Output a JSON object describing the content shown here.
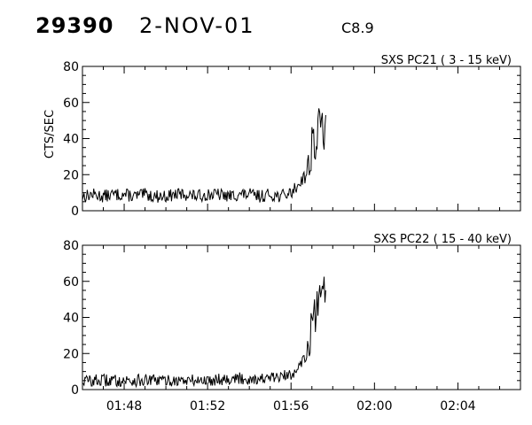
{
  "header": {
    "event_id": "29390",
    "date": "2-NOV-01",
    "flare_class": "C8.9"
  },
  "chart_data": [
    {
      "type": "line",
      "title": "SXS PC21  (  3 - 15 keV)",
      "ylabel": "CTS/SEC",
      "xlabel": "",
      "xlim": [
        "01:46",
        "02:07"
      ],
      "ylim": [
        0,
        80
      ],
      "yticks": [
        "0",
        "20",
        "40",
        "60",
        "80"
      ],
      "xtick_labels": [],
      "grid": false,
      "series": [
        {
          "x": [
            "01:46:00",
            "01:46:30",
            "01:47:00",
            "01:47:30",
            "01:48:00",
            "01:48:30",
            "01:49:00",
            "01:49:30",
            "01:50:00",
            "01:50:30",
            "01:51:00",
            "01:51:30",
            "01:52:00",
            "01:52:30",
            "01:53:00",
            "01:53:30",
            "01:54:00",
            "01:54:30",
            "01:55:00",
            "01:55:30",
            "01:56:00",
            "01:56:15",
            "01:56:30",
            "01:56:45",
            "01:56:55",
            "01:57:00",
            "01:57:10",
            "01:57:20",
            "01:57:30",
            "01:57:40"
          ],
          "y": [
            8,
            9,
            8,
            9,
            9,
            8,
            9,
            8,
            8,
            9,
            9,
            8,
            9,
            9,
            8,
            9,
            9,
            8,
            9,
            8,
            10,
            13,
            17,
            22,
            27,
            40,
            36,
            44,
            46,
            53
          ]
        }
      ]
    },
    {
      "type": "line",
      "title": "SXS PC22  ( 15 - 40 keV)",
      "ylabel": "",
      "xlabel": "",
      "xlim": [
        "01:46",
        "02:07"
      ],
      "ylim": [
        0,
        80
      ],
      "yticks": [
        "0",
        "20",
        "40",
        "60",
        "80"
      ],
      "xtick_labels": [
        "01:48",
        "01:52",
        "01:56",
        "02:00",
        "02:04"
      ],
      "grid": false,
      "series": [
        {
          "x": [
            "01:46:00",
            "01:46:30",
            "01:47:00",
            "01:47:30",
            "01:48:00",
            "01:48:30",
            "01:49:00",
            "01:49:30",
            "01:50:00",
            "01:50:30",
            "01:51:00",
            "01:51:30",
            "01:52:00",
            "01:52:30",
            "01:53:00",
            "01:53:30",
            "01:54:00",
            "01:54:30",
            "01:55:00",
            "01:55:30",
            "01:56:00",
            "01:56:15",
            "01:56:30",
            "01:56:45",
            "01:56:55",
            "01:57:00",
            "01:57:10",
            "01:57:20",
            "01:57:30",
            "01:57:40"
          ],
          "y": [
            5,
            5,
            5,
            5,
            5,
            5,
            5,
            5,
            5,
            5,
            5,
            5,
            5,
            6,
            6,
            6,
            6,
            6,
            6,
            7,
            8,
            12,
            16,
            19,
            25,
            42,
            36,
            47,
            45,
            55
          ]
        }
      ]
    }
  ]
}
